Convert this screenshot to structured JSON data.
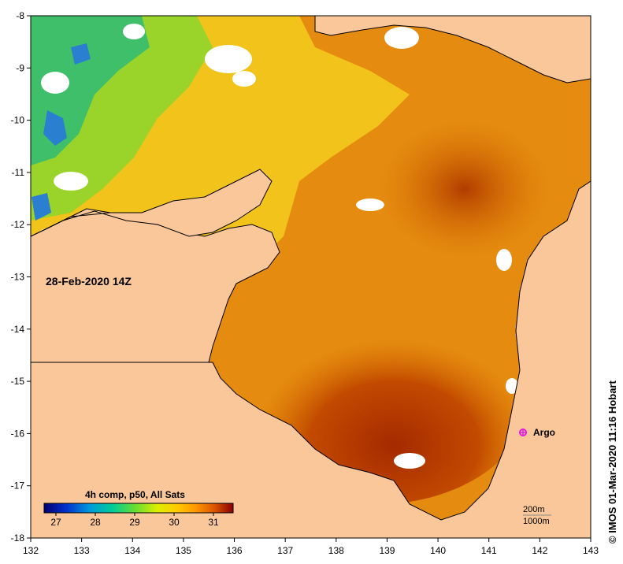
{
  "map": {
    "date_label": "28-Feb-2020 14Z",
    "credit": "© IMOS 01-Mar-2020 11:16 Hobart",
    "x_ticks": [
      "132",
      "133",
      "134",
      "135",
      "136",
      "137",
      "138",
      "139",
      "140",
      "141",
      "142",
      "143"
    ],
    "y_ticks": [
      "-8",
      "-9",
      "-10",
      "-11",
      "-12",
      "-13",
      "-14",
      "-15",
      "-16",
      "-17",
      "-18"
    ],
    "colorbar": {
      "title": "4h comp, p50, All Sats",
      "ticks": [
        "27",
        "28",
        "29",
        "30",
        "31"
      ],
      "range": [
        26.7,
        31.5
      ]
    },
    "argo": {
      "label": "Argo",
      "lon": 141.7,
      "lat": -16.0
    },
    "scale": {
      "depth_200": "200m",
      "depth_1000": "1000m"
    },
    "colors": {
      "land": "#f9c799",
      "cloud": "#ffffff",
      "argo_marker": "#e020e0"
    }
  }
}
